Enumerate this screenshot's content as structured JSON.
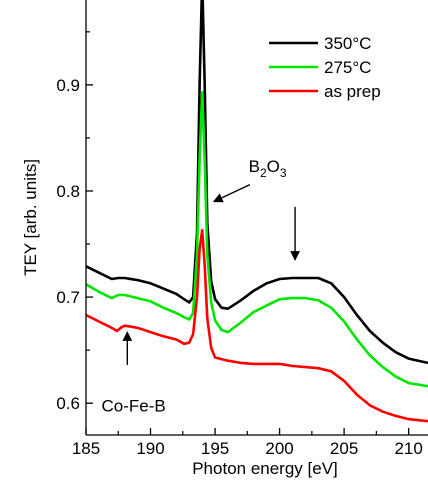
{
  "chart_data": {
    "type": "line",
    "xlabel": "Photon energy [eV]",
    "ylabel": "TEY [arb. units]",
    "xlim": [
      185,
      211.5
    ],
    "ylim": [
      0.57,
      0.98
    ],
    "xticks": [
      185,
      190,
      195,
      200,
      205,
      210
    ],
    "yticks": [
      0.6,
      0.7,
      0.8,
      0.9
    ],
    "grid": false,
    "legend_position": "top-right",
    "series": [
      {
        "name": "350°C",
        "color": "#000000",
        "points": [
          [
            185,
            0.729
          ],
          [
            186,
            0.723
          ],
          [
            187,
            0.717
          ],
          [
            187.5,
            0.718
          ],
          [
            188,
            0.718
          ],
          [
            189,
            0.716
          ],
          [
            190,
            0.713
          ],
          [
            191,
            0.708
          ],
          [
            192,
            0.703
          ],
          [
            192.6,
            0.698
          ],
          [
            193,
            0.695
          ],
          [
            193.3,
            0.7
          ],
          [
            193.6,
            0.76
          ],
          [
            193.8,
            0.9
          ],
          [
            194.0,
            1.0
          ],
          [
            194.2,
            0.9
          ],
          [
            194.4,
            0.77
          ],
          [
            194.7,
            0.715
          ],
          [
            195,
            0.698
          ],
          [
            195.5,
            0.69
          ],
          [
            196,
            0.689
          ],
          [
            197,
            0.697
          ],
          [
            198,
            0.706
          ],
          [
            199,
            0.713
          ],
          [
            200,
            0.717
          ],
          [
            201,
            0.718
          ],
          [
            202,
            0.718
          ],
          [
            203,
            0.718
          ],
          [
            204,
            0.713
          ],
          [
            205,
            0.7
          ],
          [
            206,
            0.683
          ],
          [
            207,
            0.668
          ],
          [
            208,
            0.657
          ],
          [
            209,
            0.648
          ],
          [
            210,
            0.642
          ],
          [
            211.5,
            0.638
          ]
        ]
      },
      {
        "name": "275°C",
        "color": "#00e600",
        "points": [
          [
            185,
            0.712
          ],
          [
            186,
            0.705
          ],
          [
            187,
            0.699
          ],
          [
            187.5,
            0.702
          ],
          [
            188,
            0.702
          ],
          [
            189,
            0.699
          ],
          [
            190,
            0.696
          ],
          [
            191,
            0.69
          ],
          [
            192,
            0.685
          ],
          [
            192.6,
            0.681
          ],
          [
            193,
            0.679
          ],
          [
            193.3,
            0.685
          ],
          [
            193.6,
            0.74
          ],
          [
            193.8,
            0.83
          ],
          [
            194.0,
            0.893
          ],
          [
            194.2,
            0.83
          ],
          [
            194.4,
            0.74
          ],
          [
            194.7,
            0.695
          ],
          [
            195,
            0.678
          ],
          [
            195.5,
            0.669
          ],
          [
            196,
            0.667
          ],
          [
            197,
            0.676
          ],
          [
            198,
            0.686
          ],
          [
            199,
            0.692
          ],
          [
            200,
            0.698
          ],
          [
            201,
            0.699
          ],
          [
            202,
            0.699
          ],
          [
            203,
            0.697
          ],
          [
            204,
            0.69
          ],
          [
            205,
            0.677
          ],
          [
            206,
            0.66
          ],
          [
            207,
            0.645
          ],
          [
            208,
            0.634
          ],
          [
            209,
            0.625
          ],
          [
            210,
            0.619
          ],
          [
            211.5,
            0.616
          ]
        ]
      },
      {
        "name": "as prep",
        "color": "#ff0000",
        "points": [
          [
            185,
            0.683
          ],
          [
            186,
            0.677
          ],
          [
            187,
            0.671
          ],
          [
            187.4,
            0.668
          ],
          [
            187.8,
            0.672
          ],
          [
            188,
            0.673
          ],
          [
            189,
            0.671
          ],
          [
            190,
            0.667
          ],
          [
            191,
            0.663
          ],
          [
            192,
            0.66
          ],
          [
            192.6,
            0.656
          ],
          [
            193,
            0.657
          ],
          [
            193.3,
            0.665
          ],
          [
            193.6,
            0.7
          ],
          [
            193.8,
            0.745
          ],
          [
            194.0,
            0.763
          ],
          [
            194.2,
            0.73
          ],
          [
            194.4,
            0.68
          ],
          [
            194.7,
            0.652
          ],
          [
            195,
            0.643
          ],
          [
            196,
            0.64
          ],
          [
            197,
            0.638
          ],
          [
            198,
            0.637
          ],
          [
            199,
            0.637
          ],
          [
            200,
            0.637
          ],
          [
            201,
            0.635
          ],
          [
            202,
            0.634
          ],
          [
            203,
            0.633
          ],
          [
            204,
            0.63
          ],
          [
            205,
            0.621
          ],
          [
            206,
            0.608
          ],
          [
            207,
            0.598
          ],
          [
            208,
            0.592
          ],
          [
            209,
            0.588
          ],
          [
            210,
            0.585
          ],
          [
            211.5,
            0.583
          ]
        ]
      }
    ],
    "annotations": [
      {
        "id": "cofeb",
        "text": "Co-Fe-B",
        "anchor": [
          186.2,
          0.592
        ],
        "arrow_from": [
          188.2,
          0.636
        ],
        "arrow_to": [
          188.2,
          0.667
        ]
      },
      {
        "id": "b2o3",
        "base": "B",
        "sub1": "2",
        "mid": "O",
        "sub2": "3",
        "anchor": [
          197.6,
          0.818
        ],
        "arrow1_from": [
          197.7,
          0.806
        ],
        "arrow1_to": [
          194.9,
          0.79
        ],
        "arrow2_from": [
          201.2,
          0.785
        ],
        "arrow2_to": [
          201.2,
          0.735
        ]
      }
    ]
  }
}
